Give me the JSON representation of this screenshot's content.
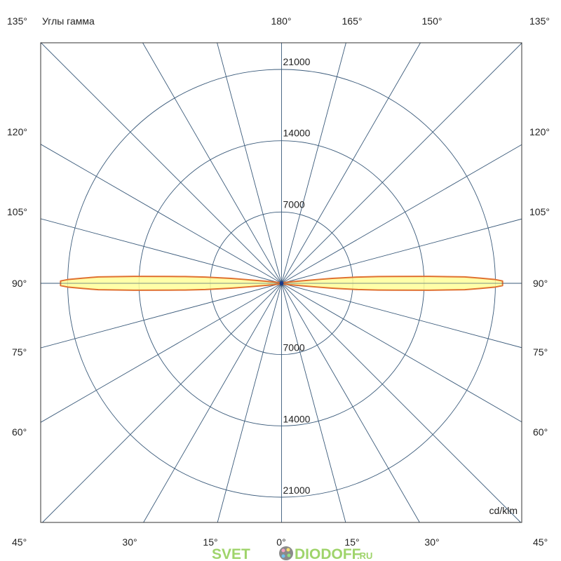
{
  "chart_data": {
    "type": "polar",
    "title": "Углы гамма",
    "unit": "cd/klm",
    "radial_ticks": [
      7000,
      14000,
      21000
    ],
    "radial_max": 21000,
    "angle_step_deg": 15,
    "grid": true,
    "angle_labels": {
      "top": [
        "135°",
        "180°",
        "165°",
        "150°",
        "135°"
      ],
      "left": [
        "120°",
        "105°",
        "90°",
        "75°",
        "60°",
        "45°"
      ],
      "right": [
        "120°",
        "105°",
        "90°",
        "75°",
        "60°",
        "45°"
      ],
      "bottom": [
        "30°",
        "15°",
        "0°",
        "15°",
        "30°"
      ]
    },
    "series": [
      {
        "gamma": [
          0,
          70,
          80,
          83,
          84,
          84.5,
          85.3,
          86,
          86.5,
          87.3,
          88,
          88.5,
          89,
          89.4,
          90,
          90.6,
          91,
          91.5,
          92,
          92.7,
          93.5,
          94,
          94.7,
          95.5,
          96,
          97,
          100,
          110,
          180
        ],
        "intensity": [
          0,
          200,
          800,
          2000,
          3500,
          5000,
          7500,
          9500,
          11000,
          14500,
          18000,
          19500,
          21000,
          21700,
          21700,
          21700,
          21000,
          19500,
          18000,
          14500,
          11000,
          9500,
          7500,
          5000,
          3500,
          2000,
          800,
          200,
          0
        ]
      }
    ],
    "colors": {
      "grid": "#3a5a7a",
      "frame": "#333333",
      "curve_fill": "#ffff99",
      "curve_stroke": "#e07030",
      "center_dot": "#1a3a8a"
    }
  },
  "watermark": {
    "text_left": "SVET",
    "text_right": "DIODOFF",
    "suffix": ".RU"
  }
}
